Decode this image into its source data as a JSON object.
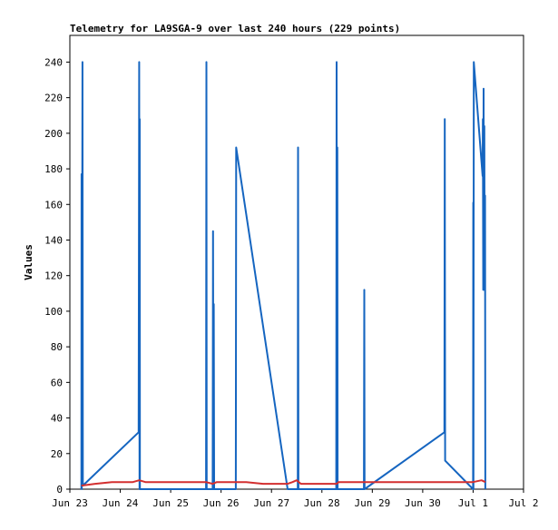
{
  "chart_data": {
    "type": "line",
    "title": "Telemetry for LA9SGA-9 over last 240 hours (229 points)",
    "xlabel": "",
    "ylabel": "Values",
    "ylim": [
      0,
      255
    ],
    "xlim": [
      "2023-06-23 00:00",
      "2023-07-02 00:00"
    ],
    "yticks": [
      0,
      20,
      40,
      60,
      80,
      100,
      120,
      140,
      160,
      180,
      200,
      220,
      240
    ],
    "xticks": [
      {
        "date": "2023-06-23 00:00",
        "label": "Jun 23"
      },
      {
        "date": "2023-06-24 00:00",
        "label": "Jun 24"
      },
      {
        "date": "2023-06-25 00:00",
        "label": "Jun 25"
      },
      {
        "date": "2023-06-26 00:00",
        "label": "Jun 26"
      },
      {
        "date": "2023-06-27 00:00",
        "label": "Jun 27"
      },
      {
        "date": "2023-06-28 00:00",
        "label": "Jun 28"
      },
      {
        "date": "2023-06-29 00:00",
        "label": "Jun 29"
      },
      {
        "date": "2023-06-30 00:00",
        "label": "Jun 30"
      },
      {
        "date": "2023-07-01 00:00",
        "label": "Jul 1"
      },
      {
        "date": "2023-07-02 00:00",
        "label": "Jul 2"
      }
    ],
    "grid": false,
    "legend": "none",
    "series": [
      {
        "color": "#1565c0",
        "points": [
          [
            "2023-06-23 05:30",
            0
          ],
          [
            "2023-06-23 05:35",
            177
          ],
          [
            "2023-06-23 05:40",
            0
          ],
          [
            "2023-06-23 06:00",
            240
          ],
          [
            "2023-06-23 06:10",
            2
          ],
          [
            "2023-06-24 08:45",
            32
          ],
          [
            "2023-06-24 09:00",
            240
          ],
          [
            "2023-06-24 09:10",
            0
          ],
          [
            "2023-06-24 09:15",
            208
          ],
          [
            "2023-06-24 09:20",
            0
          ],
          [
            "2023-06-25 16:50",
            0
          ],
          [
            "2023-06-25 17:00",
            240
          ],
          [
            "2023-06-25 17:10",
            0
          ],
          [
            "2023-06-25 20:00",
            0
          ],
          [
            "2023-06-25 20:10",
            145
          ],
          [
            "2023-06-25 20:20",
            0
          ],
          [
            "2023-06-25 20:30",
            104
          ],
          [
            "2023-06-25 20:40",
            0
          ],
          [
            "2023-06-26 07:00",
            0
          ],
          [
            "2023-06-26 07:10",
            192
          ],
          [
            "2023-06-27 07:40",
            0
          ],
          [
            "2023-06-27 08:00",
            0
          ],
          [
            "2023-06-27 12:30",
            0
          ],
          [
            "2023-06-27 12:40",
            192
          ],
          [
            "2023-06-27 12:50",
            0
          ],
          [
            "2023-06-28 06:50",
            0
          ],
          [
            "2023-06-28 07:00",
            240
          ],
          [
            "2023-06-28 07:10",
            0
          ],
          [
            "2023-06-28 07:20",
            192
          ],
          [
            "2023-06-28 07:30",
            0
          ],
          [
            "2023-06-28 20:00",
            0
          ],
          [
            "2023-06-28 20:10",
            112
          ],
          [
            "2023-06-28 20:20",
            0
          ],
          [
            "2023-06-30 10:20",
            32
          ],
          [
            "2023-06-30 10:30",
            208
          ],
          [
            "2023-06-30 10:40",
            16
          ],
          [
            "2023-07-01 00:00",
            0
          ],
          [
            "2023-07-01 00:05",
            161
          ],
          [
            "2023-07-01 00:10",
            0
          ],
          [
            "2023-07-01 00:20",
            240
          ],
          [
            "2023-07-01 04:30",
            176
          ],
          [
            "2023-07-01 04:40",
            208
          ],
          [
            "2023-07-01 04:50",
            112
          ],
          [
            "2023-07-01 05:00",
            225
          ],
          [
            "2023-07-01 05:10",
            112
          ],
          [
            "2023-07-01 05:20",
            204
          ],
          [
            "2023-07-01 05:30",
            112
          ],
          [
            "2023-07-01 05:40",
            165
          ],
          [
            "2023-07-01 05:50",
            0
          ]
        ]
      },
      {
        "color": "#d32f2f",
        "points": [
          [
            "2023-06-23 05:30",
            2
          ],
          [
            "2023-06-23 12:00",
            3
          ],
          [
            "2023-06-23 20:00",
            4
          ],
          [
            "2023-06-24 06:00",
            4
          ],
          [
            "2023-06-24 09:00",
            5
          ],
          [
            "2023-06-24 12:00",
            4
          ],
          [
            "2023-06-25 00:00",
            4
          ],
          [
            "2023-06-25 16:50",
            4
          ],
          [
            "2023-06-25 20:00",
            3
          ],
          [
            "2023-06-25 22:00",
            4
          ],
          [
            "2023-06-26 12:00",
            4
          ],
          [
            "2023-06-26 20:00",
            3
          ],
          [
            "2023-06-27 07:40",
            3
          ],
          [
            "2023-06-27 10:00",
            4
          ],
          [
            "2023-06-27 12:00",
            5
          ],
          [
            "2023-06-27 14:00",
            3
          ],
          [
            "2023-06-28 07:00",
            3
          ],
          [
            "2023-06-28 08:00",
            4
          ],
          [
            "2023-06-28 10:00",
            4
          ],
          [
            "2023-06-28 20:00",
            4
          ],
          [
            "2023-06-29 12:00",
            4
          ],
          [
            "2023-06-30 10:30",
            4
          ],
          [
            "2023-06-30 20:00",
            4
          ],
          [
            "2023-07-01 00:00",
            4
          ],
          [
            "2023-07-01 04:00",
            5
          ],
          [
            "2023-07-01 05:50",
            4
          ]
        ]
      }
    ]
  }
}
